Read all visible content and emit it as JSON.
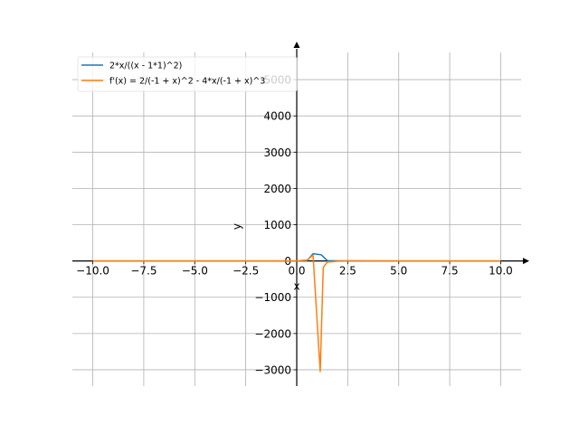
{
  "chart_data": {
    "type": "line",
    "xlabel": "x",
    "ylabel": "y",
    "xlim": [
      -11.0,
      11.0
    ],
    "ylim": [
      -3450,
      5750
    ],
    "grid": true,
    "legend_position": "top-left",
    "x_ticks": [
      -10.0,
      -7.5,
      -5.0,
      -2.5,
      0.0,
      2.5,
      5.0,
      7.5,
      10.0
    ],
    "x_tick_labels": [
      "−10.0",
      "−7.5",
      "−5.0",
      "−2.5",
      "0.0",
      "2.5",
      "5.0",
      "7.5",
      "10.0"
    ],
    "y_ticks": [
      -3000,
      -2000,
      -1000,
      0,
      1000,
      2000,
      3000,
      4000,
      5000
    ],
    "y_tick_labels": [
      "−3000",
      "−2000",
      "−1000",
      "0",
      "1000",
      "2000",
      "3000",
      "4000",
      "5000"
    ],
    "series": [
      {
        "name": "2*x/((x - 1*1)^2)",
        "color": "#1f77b4",
        "x": [
          -10,
          -5,
          -2,
          -1,
          0,
          0.5,
          0.8,
          1.2,
          1.5,
          2,
          3,
          5,
          10
        ],
        "y": [
          -0.17,
          -0.28,
          -0.44,
          -0.5,
          0,
          4,
          200,
          170,
          10,
          4,
          1.5,
          0.63,
          0.25
        ]
      },
      {
        "name": "f'(x) = 2/(-1 + x)^2 - 4*x/(-1 + x)^3",
        "color": "#ff7f0e",
        "x": [
          -10,
          -5,
          -2,
          -1,
          0,
          0.5,
          0.8,
          1.15,
          1.3,
          1.5,
          2,
          3,
          5,
          10
        ],
        "y": [
          0.012,
          0.037,
          0.07,
          0,
          2,
          24,
          160,
          -3050,
          -180,
          -30,
          -6,
          -1,
          -0.19,
          -0.03
        ]
      }
    ]
  }
}
